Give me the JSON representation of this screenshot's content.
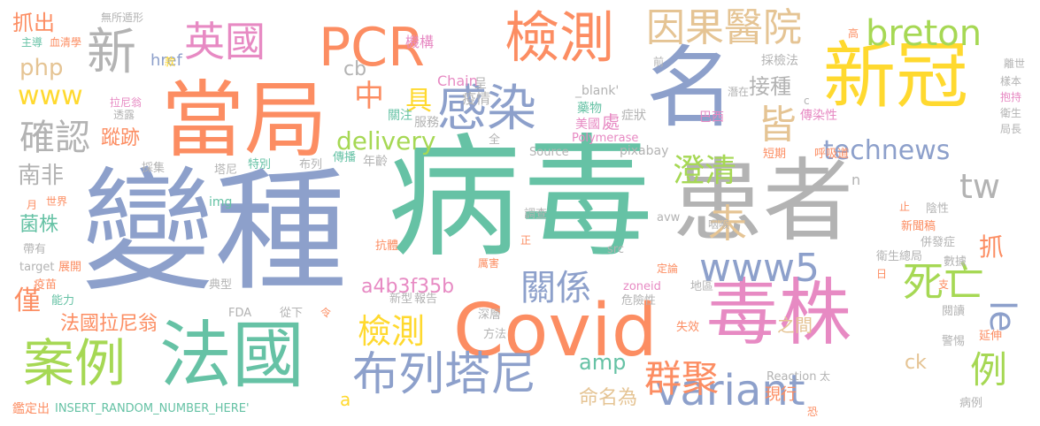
{
  "palette": {
    "teal": "#66c2a5",
    "orange": "#fc8d62",
    "blue": "#8da0cb",
    "pink": "#e78ac3",
    "lime": "#a6d854",
    "yellow": "#ffd92f",
    "tan": "#e5c494",
    "gray": "#b3b3b3"
  },
  "words": {
    "bianzhong": "變種",
    "bingdu": "病毒",
    "huanzhe": "患者",
    "covid": "Covid",
    "dangju": "當局",
    "xinguan": "新冠",
    "ming": "名",
    "pcr": "PCR",
    "jiance_big": "檢測",
    "dulu": "毒株",
    "faguo": "法國",
    "anli": "案例",
    "buliedani": "布列塔尼",
    "yingguo": "英國",
    "xin": "新",
    "ganran": "感染",
    "queren": "確認",
    "yinguo_yiyuan": "因果醫院",
    "breton": "breton",
    "www": "www",
    "www5": "www5",
    "variant": "variant",
    "technews": "technews",
    "delivery": "delivery",
    "chengqing": "澄清",
    "siwang": "死亡",
    "guanxi": "關係",
    "jiance_mid": "檢測",
    "qunju": "群聚",
    "li": "例",
    "le": "le",
    "tw": "tw",
    "wei": "未",
    "jie": "皆",
    "jiezhong": "接種",
    "nanfei": "南非",
    "zhong": "中",
    "ju": "具",
    "zhua": "抓",
    "zhuachu": "抓出",
    "php": "php",
    "zongji": "蹤跡",
    "junzhu": "菌株",
    "jin": "僅",
    "faguo_laniweng": "法國拉尼翁",
    "a4b3": "a4b3f35b",
    "amp": "amp",
    "mingmingwei": "命名為",
    "zhijian": "之間",
    "xianxing": "現行",
    "ck": "ck",
    "cb": "cb",
    "href": "href",
    "jigou": "機構",
    "chain": "Chain",
    "blank": "_blank'",
    "yaowu": "藥物",
    "caijiancefa": "採檢法",
    "chengxian": "呈",
    "yiqing": "疫情",
    "meiguo": "美國",
    "chu": "處",
    "zhengzhuang": "症狀",
    "baxi": "巴西",
    "qianzai": "潛在",
    "guanzhu": "關注",
    "fuwu": "服務",
    "polymerase": "Polymerase",
    "chuanranxing": "傳染性",
    "huxidao": "呼吸道",
    "duanqi": "短期",
    "pixabay": "pixabay",
    "source": "Source",
    "quan": "全",
    "chuanbo": "傳播",
    "nianling": "年齡",
    "tebie": "特別",
    "buli": "布列",
    "tani": "塔尼",
    "caiji": "採集",
    "laniweng": "拉尼翁",
    "touru": "透露",
    "zhudao": "主導",
    "xueqingxue": "血清學",
    "wusuo_dunxing": "無所遁形",
    "kuan": "款",
    "qian": "前",
    "gao": "高",
    "lihun": "離世",
    "yangben": "樣本",
    "baoche": "抱持",
    "weisheng": "衛生",
    "juzhang": "局長",
    "c": "c",
    "n": "n",
    "img": "img",
    "yue": "月",
    "shijie": "世界",
    "daiyou": "帶有",
    "target": "target",
    "zhankai": "展開",
    "yimiao": "疫苗",
    "nengli": "能力",
    "diaocha": "調查",
    "kangti": "抗體",
    "zheng": "正",
    "src": "src",
    "avw": "avw",
    "zuihou": "嚴重",
    "yanhou": "咽喉",
    "zhi": "止",
    "yinxing": "陰性",
    "xinwengao": "新聞稿",
    "bingfazheng": "併發症",
    "weishengzongju": "衛生總局",
    "shuju": "數據",
    "ri": "日",
    "zhi2": "支",
    "dianxing": "典型",
    "lihai": "厲害",
    "dinglun": "定論",
    "zoneid": "zoneid",
    "diqu": "地區",
    "fda": "FDA",
    "congxia": "從下",
    "ling": "令",
    "xinxing": "新型",
    "baogao": "報告",
    "shenceng": "深層",
    "weixianxing": "危險性",
    "fangfa": "方法",
    "shixiao": "失效",
    "yueddu": "閱讀",
    "yanshen": "延伸",
    "jingti": "警惕",
    "reaction": "Reaction",
    "tai": "太",
    "bingli": "病例",
    "kong": "恐",
    "jiandingchu": "鑑定出",
    "insert": "INSERT_RANDOM_NUMBER_HERE'",
    "a": "a"
  }
}
